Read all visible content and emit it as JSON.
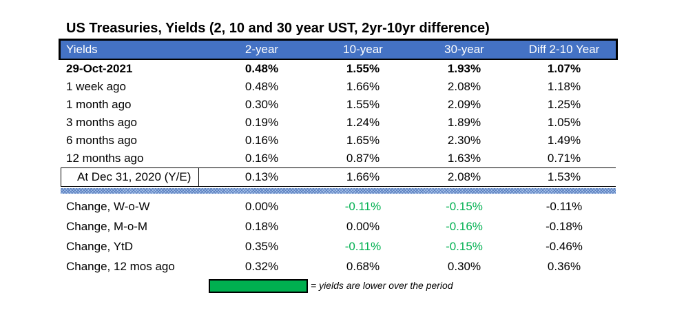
{
  "title": "US Treasuries, Yields (2, 10 and 30 year UST, 2yr-10yr difference)",
  "colors": {
    "header_bg": "#4472c4",
    "lower_yield_green": "#00b050"
  },
  "header": [
    "Yields",
    "2-year",
    "10-year",
    "30-year",
    "Diff 2-10 Year"
  ],
  "rows": [
    {
      "label": "29-Oct-2021",
      "y2": "0.48%",
      "y10": "1.55%",
      "y30": "1.93%",
      "diff": "1.07%"
    },
    {
      "label": "1 week ago",
      "y2": "0.48%",
      "y10": "1.66%",
      "y30": "2.08%",
      "diff": "1.18%"
    },
    {
      "label": "1 month ago",
      "y2": "0.30%",
      "y10": "1.55%",
      "y30": "2.09%",
      "diff": "1.25%"
    },
    {
      "label": "3 months ago",
      "y2": "0.19%",
      "y10": "1.24%",
      "y30": "1.89%",
      "diff": "1.05%"
    },
    {
      "label": "6 months ago",
      "y2": "0.16%",
      "y10": "1.65%",
      "y30": "2.30%",
      "diff": "1.49%"
    },
    {
      "label": "12 months ago",
      "y2": "0.16%",
      "y10": "0.87%",
      "y30": "1.63%",
      "diff": "0.71%"
    },
    {
      "label": "At Dec 31, 2020 (Y/E)",
      "y2": "0.13%",
      "y10": "1.66%",
      "y30": "2.08%",
      "diff": "1.53%"
    }
  ],
  "changes": [
    {
      "label": "Change, W-o-W",
      "y2": "0.00%",
      "y10": "-0.11%",
      "y30": "-0.15%",
      "diff": "-0.11%"
    },
    {
      "label": "Change, M-o-M",
      "y2": "0.18%",
      "y10": "0.00%",
      "y30": "-0.16%",
      "diff": "-0.18%"
    },
    {
      "label": "Change, YtD",
      "y2": "0.35%",
      "y10": "-0.11%",
      "y30": "-0.15%",
      "diff": "-0.46%"
    },
    {
      "label": "Change, 12 mos ago",
      "y2": "0.32%",
      "y10": "0.68%",
      "y30": "0.30%",
      "diff": "0.36%"
    }
  ],
  "legend": {
    "text": "= yields are lower over the period"
  }
}
